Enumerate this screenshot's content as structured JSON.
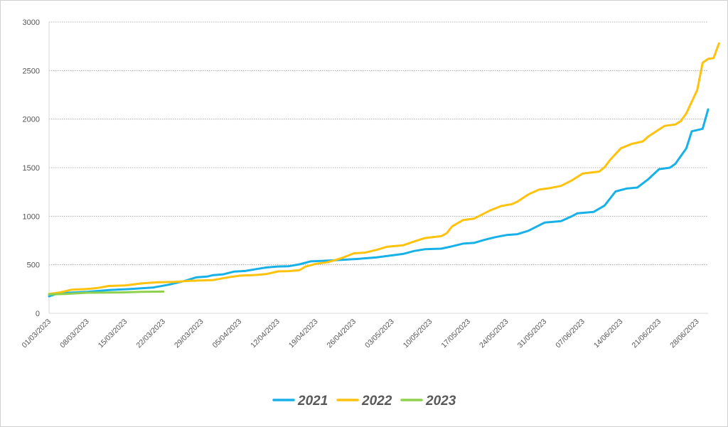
{
  "chart_data": {
    "type": "line",
    "title": "",
    "xlabel": "",
    "ylabel": "",
    "ylim": [
      0,
      3000
    ],
    "yticks": [
      0,
      500,
      1000,
      1500,
      2000,
      2500,
      3000
    ],
    "grid": "horizontal dotted",
    "legend": "bottom-center",
    "x_start": "01/03/2023",
    "x_end": "30/06/2023",
    "xtick_labels": [
      "01/03/2023",
      "08/03/2023",
      "15/03/2023",
      "22/03/2023",
      "29/03/2023",
      "05/04/2023",
      "12/04/2023",
      "19/04/2023",
      "26/04/2023",
      "03/05/2023",
      "10/05/2023",
      "17/05/2023",
      "24/05/2023",
      "31/05/2023",
      "07/06/2023",
      "14/06/2023",
      "21/06/2023",
      "28/06/2023"
    ],
    "series": [
      {
        "name": "2021",
        "color": "#17b1e8",
        "points": [
          [
            "01/03/2023",
            175
          ],
          [
            "02/03/2023",
            195
          ],
          [
            "04/03/2023",
            210
          ],
          [
            "08/03/2023",
            222
          ],
          [
            "12/03/2023",
            240
          ],
          [
            "16/03/2023",
            250
          ],
          [
            "20/03/2023",
            265
          ],
          [
            "23/03/2023",
            295
          ],
          [
            "26/03/2023",
            335
          ],
          [
            "28/03/2023",
            370
          ],
          [
            "30/03/2023",
            378
          ],
          [
            "31/03/2023",
            392
          ],
          [
            "02/04/2023",
            402
          ],
          [
            "04/04/2023",
            430
          ],
          [
            "06/04/2023",
            436
          ],
          [
            "08/04/2023",
            455
          ],
          [
            "10/04/2023",
            473
          ],
          [
            "12/04/2023",
            482
          ],
          [
            "14/04/2023",
            485
          ],
          [
            "16/04/2023",
            505
          ],
          [
            "18/04/2023",
            535
          ],
          [
            "20/04/2023",
            540
          ],
          [
            "24/04/2023",
            552
          ],
          [
            "27/04/2023",
            562
          ],
          [
            "30/04/2023",
            575
          ],
          [
            "02/05/2023",
            590
          ],
          [
            "05/05/2023",
            612
          ],
          [
            "07/05/2023",
            642
          ],
          [
            "09/05/2023",
            660
          ],
          [
            "12/05/2023",
            666
          ],
          [
            "14/05/2023",
            690
          ],
          [
            "16/05/2023",
            718
          ],
          [
            "18/05/2023",
            725
          ],
          [
            "20/05/2023",
            758
          ],
          [
            "22/05/2023",
            785
          ],
          [
            "24/05/2023",
            806
          ],
          [
            "26/05/2023",
            815
          ],
          [
            "28/05/2023",
            850
          ],
          [
            "31/05/2023",
            935
          ],
          [
            "03/06/2023",
            950
          ],
          [
            "05/06/2023",
            1000
          ],
          [
            "06/06/2023",
            1030
          ],
          [
            "09/06/2023",
            1045
          ],
          [
            "11/06/2023",
            1110
          ],
          [
            "13/06/2023",
            1255
          ],
          [
            "15/06/2023",
            1285
          ],
          [
            "17/06/2023",
            1295
          ],
          [
            "19/06/2023",
            1380
          ],
          [
            "21/06/2023",
            1485
          ],
          [
            "23/06/2023",
            1500
          ],
          [
            "24/06/2023",
            1540
          ],
          [
            "26/06/2023",
            1700
          ],
          [
            "27/06/2023",
            1875
          ],
          [
            "29/06/2023",
            1900
          ],
          [
            "30/06/2023",
            2100
          ]
        ]
      },
      {
        "name": "2022",
        "color": "#ffc20e",
        "points": [
          [
            "01/03/2023",
            200
          ],
          [
            "03/03/2023",
            215
          ],
          [
            "05/03/2023",
            242
          ],
          [
            "08/03/2023",
            250
          ],
          [
            "10/03/2023",
            262
          ],
          [
            "12/03/2023",
            282
          ],
          [
            "15/03/2023",
            287
          ],
          [
            "18/03/2023",
            308
          ],
          [
            "21/03/2023",
            320
          ],
          [
            "24/03/2023",
            324
          ],
          [
            "27/03/2023",
            335
          ],
          [
            "31/03/2023",
            342
          ],
          [
            "03/04/2023",
            372
          ],
          [
            "05/04/2023",
            388
          ],
          [
            "08/04/2023",
            395
          ],
          [
            "10/04/2023",
            405
          ],
          [
            "12/04/2023",
            432
          ],
          [
            "14/04/2023",
            435
          ],
          [
            "16/04/2023",
            445
          ],
          [
            "17/04/2023",
            480
          ],
          [
            "19/04/2023",
            510
          ],
          [
            "21/04/2023",
            525
          ],
          [
            "23/04/2023",
            555
          ],
          [
            "24/04/2023",
            575
          ],
          [
            "26/04/2023",
            618
          ],
          [
            "28/04/2023",
            625
          ],
          [
            "30/04/2023",
            652
          ],
          [
            "02/05/2023",
            685
          ],
          [
            "05/05/2023",
            700
          ],
          [
            "07/05/2023",
            740
          ],
          [
            "09/05/2023",
            775
          ],
          [
            "12/05/2023",
            795
          ],
          [
            "13/05/2023",
            825
          ],
          [
            "14/05/2023",
            895
          ],
          [
            "16/05/2023",
            960
          ],
          [
            "18/05/2023",
            975
          ],
          [
            "21/05/2023",
            1060
          ],
          [
            "23/05/2023",
            1105
          ],
          [
            "25/05/2023",
            1125
          ],
          [
            "26/05/2023",
            1150
          ],
          [
            "28/05/2023",
            1225
          ],
          [
            "30/05/2023",
            1275
          ],
          [
            "01/06/2023",
            1290
          ],
          [
            "03/06/2023",
            1312
          ],
          [
            "05/06/2023",
            1370
          ],
          [
            "07/06/2023",
            1440
          ],
          [
            "10/06/2023",
            1460
          ],
          [
            "11/06/2023",
            1505
          ],
          [
            "12/06/2023",
            1580
          ],
          [
            "14/06/2023",
            1700
          ],
          [
            "16/06/2023",
            1745
          ],
          [
            "18/06/2023",
            1770
          ],
          [
            "19/06/2023",
            1820
          ],
          [
            "22/06/2023",
            1930
          ],
          [
            "24/06/2023",
            1945
          ],
          [
            "25/06/2023",
            1980
          ],
          [
            "26/06/2023",
            2060
          ],
          [
            "28/06/2023",
            2300
          ],
          [
            "29/06/2023",
            2580
          ],
          [
            "30/06/2023",
            2620
          ],
          [
            "01/07/2023",
            2628
          ],
          [
            "02/07/2023",
            2780
          ]
        ]
      },
      {
        "name": "2023",
        "color": "#8fd14f",
        "points": [
          [
            "01/03/2023",
            195
          ],
          [
            "04/03/2023",
            200
          ],
          [
            "08/03/2023",
            212
          ],
          [
            "14/03/2023",
            215
          ],
          [
            "18/03/2023",
            222
          ],
          [
            "22/03/2023",
            224
          ]
        ]
      }
    ]
  }
}
